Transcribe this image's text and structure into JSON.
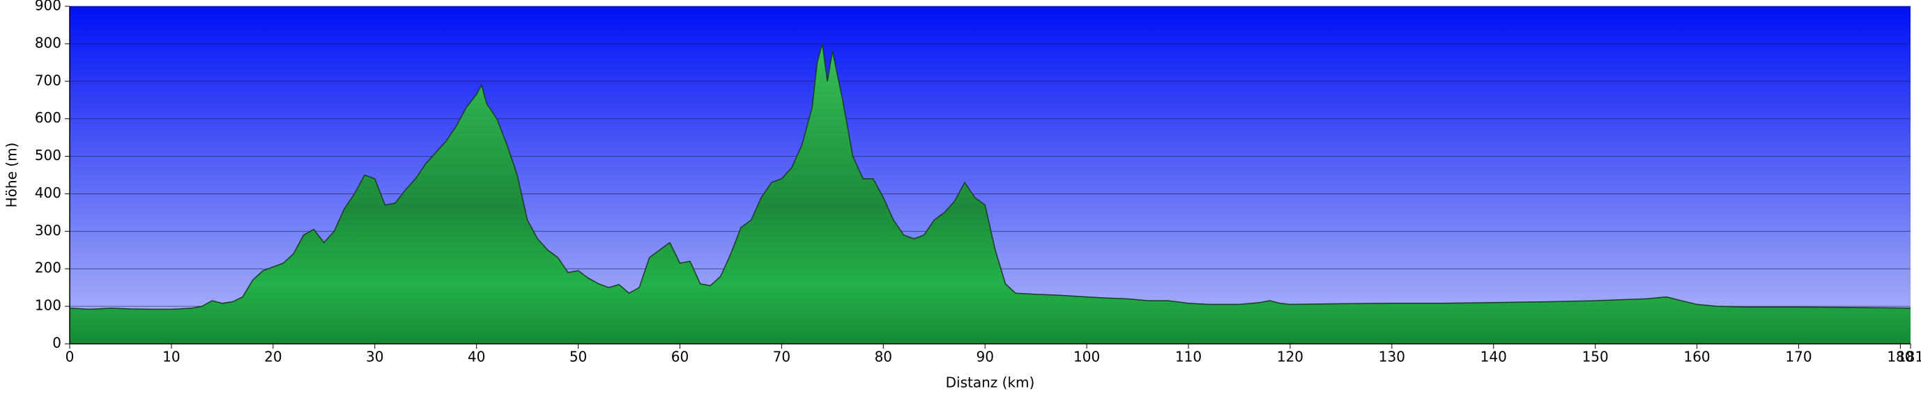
{
  "chart_data": {
    "type": "area",
    "xlabel": "Distanz (km)",
    "ylabel": "Höhe (m)",
    "x": [
      0,
      2,
      4,
      6,
      8,
      10,
      12,
      13,
      14,
      15,
      16,
      17,
      18,
      19,
      20,
      21,
      22,
      23,
      24,
      25,
      26,
      27,
      28,
      29,
      30,
      31,
      32,
      33,
      34,
      35,
      36,
      37,
      38,
      39,
      40,
      40.5,
      41,
      42,
      43,
      44,
      45,
      46,
      47,
      48,
      49,
      50,
      51,
      52,
      53,
      54,
      55,
      56,
      57,
      58,
      59,
      60,
      61,
      62,
      63,
      64,
      65,
      66,
      67,
      68,
      69,
      70,
      71,
      72,
      73,
      73.5,
      74,
      74.5,
      75,
      76,
      77,
      78,
      79,
      80,
      81,
      82,
      83,
      84,
      85,
      86,
      87,
      88,
      89,
      90,
      91,
      92,
      93,
      95,
      97,
      100,
      102,
      104,
      106,
      108,
      110,
      112,
      115,
      117,
      118,
      119,
      120,
      125,
      130,
      135,
      140,
      145,
      150,
      155,
      157,
      158,
      160,
      162,
      165,
      170,
      175,
      178,
      181
    ],
    "values": [
      95,
      92,
      95,
      93,
      92,
      92,
      95,
      100,
      115,
      108,
      112,
      125,
      170,
      195,
      205,
      215,
      240,
      290,
      305,
      270,
      300,
      360,
      400,
      450,
      440,
      370,
      375,
      410,
      440,
      480,
      510,
      540,
      580,
      630,
      665,
      690,
      640,
      600,
      530,
      450,
      330,
      280,
      250,
      230,
      190,
      195,
      175,
      160,
      150,
      158,
      135,
      150,
      230,
      250,
      270,
      215,
      220,
      160,
      155,
      180,
      240,
      310,
      330,
      390,
      430,
      440,
      470,
      530,
      630,
      750,
      800,
      700,
      780,
      650,
      500,
      440,
      440,
      390,
      330,
      290,
      280,
      290,
      330,
      350,
      380,
      430,
      390,
      370,
      250,
      160,
      135,
      132,
      130,
      125,
      122,
      120,
      115,
      115,
      108,
      105,
      105,
      110,
      115,
      108,
      105,
      107,
      108,
      108,
      110,
      112,
      115,
      120,
      125,
      118,
      105,
      100,
      98,
      98,
      97,
      96,
      95
    ],
    "color": "#1fa844",
    "xlim": [
      0,
      181
    ],
    "ylim": [
      0,
      900
    ],
    "xticks": [
      0,
      10,
      20,
      30,
      40,
      50,
      60,
      70,
      80,
      90,
      100,
      110,
      120,
      130,
      140,
      150,
      160,
      170,
      180,
      181
    ],
    "yticks": [
      0,
      100,
      200,
      300,
      400,
      500,
      600,
      700,
      800,
      900
    ],
    "grid": true
  }
}
